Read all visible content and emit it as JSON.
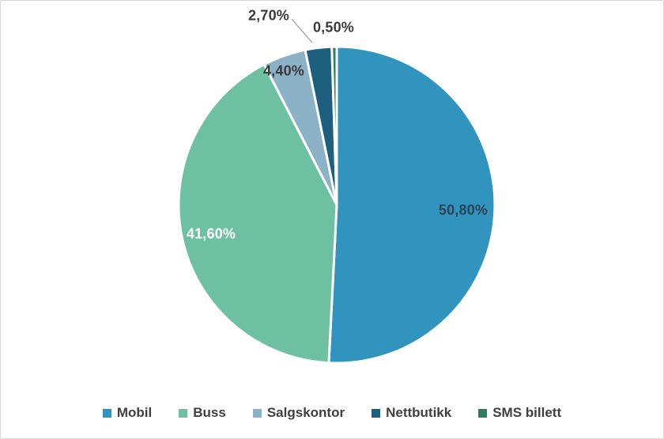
{
  "chart_data": {
    "type": "pie",
    "title": "",
    "start_angle_deg": 0,
    "direction": "clockwise",
    "gap_color": "#FFFFFF",
    "slices": [
      {
        "label": "Mobil",
        "value": 50.8,
        "display": "50,80%",
        "color": "#3094BE",
        "label_placement": "inside"
      },
      {
        "label": "Buss",
        "value": 41.6,
        "display": "41,60%",
        "color": "#6EC0A2",
        "label_placement": "inside"
      },
      {
        "label": "Salgskontor",
        "value": 4.4,
        "display": "4,40%",
        "color": "#8CB2C7",
        "label_placement": "inside-edge"
      },
      {
        "label": "Nettbutikk",
        "value": 2.7,
        "display": "2,70%",
        "color": "#1E5E7E",
        "label_placement": "outside-callout"
      },
      {
        "label": "SMS billett",
        "value": 0.5,
        "display": "0,50%",
        "color": "#2F7E60",
        "label_placement": "outside"
      }
    ],
    "legend": {
      "position": "bottom",
      "entries": [
        "Mobil",
        "Buss",
        "Salgskontor",
        "Nettbutikk",
        "SMS billett"
      ]
    }
  }
}
